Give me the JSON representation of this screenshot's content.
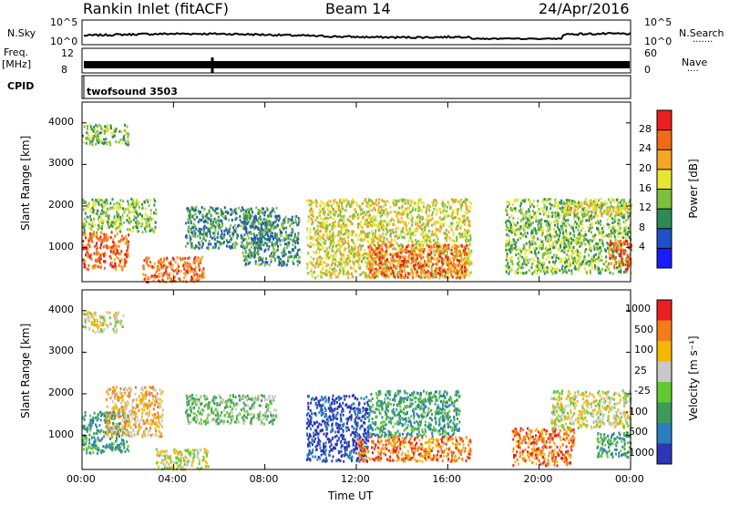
{
  "header": {
    "station": "Rankin Inlet (fitACF)",
    "beam": "Beam 14",
    "date": "24/Apr/2016"
  },
  "side_labels": {
    "nsky": "N.Sky",
    "nsearch": "N.Search",
    "freq": "Freq.",
    "freq_unit": "[MHz]",
    "nave": "Nave",
    "cpid": "CPID",
    "dots_search": "·······",
    "dots_nave": "····"
  },
  "cpid_value": "twofsound 3503",
  "noise_axis": {
    "left_ticks": [
      "10^5",
      "10^0"
    ],
    "right_ticks": [
      "10^5",
      "10^0"
    ]
  },
  "freq_axis": {
    "left_ticks": [
      "12",
      "8"
    ],
    "right_ticks": [
      "60",
      "0"
    ]
  },
  "chart_data": [
    {
      "type": "heatmap",
      "title": "",
      "xlabel": "Time UT",
      "ylabel": "Slant Range [km]",
      "x_ticks": [
        "00:00",
        "04:00",
        "08:00",
        "12:00",
        "16:00",
        "20:00",
        "00:00"
      ],
      "xlim": [
        0,
        24
      ],
      "y_ticks": [
        1000,
        2000,
        3000,
        4000
      ],
      "ylim": [
        180,
        4500
      ],
      "colorbar": {
        "label": "Power [dB]",
        "ticks": [
          "4",
          "8",
          "12",
          "16",
          "20",
          "24",
          "28"
        ],
        "colors": [
          "#1a1aff",
          "#2050c8",
          "#2e8b57",
          "#7fbf3f",
          "#e6e632",
          "#f5a623",
          "#f06a1a",
          "#e82020"
        ]
      },
      "regions": [
        {
          "t0": 0.0,
          "t1": 2.0,
          "r0": 500,
          "r1": 1400,
          "level": 6
        },
        {
          "t0": 0.0,
          "t1": 3.2,
          "r0": 1400,
          "r1": 2200,
          "level": 3
        },
        {
          "t0": 0.0,
          "t1": 2.0,
          "r0": 3500,
          "r1": 4000,
          "level": 3
        },
        {
          "t0": 2.6,
          "t1": 5.3,
          "r0": 200,
          "r1": 800,
          "level": 6
        },
        {
          "t0": 4.5,
          "t1": 8.5,
          "r0": 1000,
          "r1": 2000,
          "level": 2
        },
        {
          "t0": 7.0,
          "t1": 9.5,
          "r0": 600,
          "r1": 1800,
          "level": 2
        },
        {
          "t0": 9.8,
          "t1": 17.0,
          "r0": 300,
          "r1": 2200,
          "level": 4
        },
        {
          "t0": 12.5,
          "t1": 16.8,
          "r0": 300,
          "r1": 1100,
          "level": 6
        },
        {
          "t0": 18.5,
          "t1": 24.0,
          "r0": 400,
          "r1": 2200,
          "level": 3
        },
        {
          "t0": 21.0,
          "t1": 24.0,
          "r0": 1800,
          "r1": 2100,
          "level": 4
        },
        {
          "t0": 23.0,
          "t1": 24.0,
          "r0": 500,
          "r1": 1200,
          "level": 6
        }
      ]
    },
    {
      "type": "heatmap",
      "title": "",
      "xlabel": "Time UT",
      "ylabel": "Slant Range [km]",
      "x_ticks": [
        "00:00",
        "04:00",
        "08:00",
        "12:00",
        "16:00",
        "20:00",
        "00:00"
      ],
      "xlim": [
        0,
        24
      ],
      "y_ticks": [
        1000,
        2000,
        3000,
        4000
      ],
      "ylim": [
        180,
        4500
      ],
      "colorbar": {
        "label": "Velocity [m s⁻¹]",
        "ticks": [
          "1000",
          "500",
          "100",
          "25",
          "-25",
          "-100",
          "-500",
          "-1000"
        ],
        "colors": [
          "#2d36b4",
          "#2a7fbf",
          "#3c9b5a",
          "#63c832",
          "#c8c8c8",
          "#f5b800",
          "#f07c1a",
          "#e82020"
        ]
      },
      "regions": [
        {
          "t0": 0.0,
          "t1": 2.0,
          "r0": 600,
          "r1": 1600,
          "level": 2
        },
        {
          "t0": 0.0,
          "t1": 1.8,
          "r0": 3500,
          "r1": 4000,
          "level": 4
        },
        {
          "t0": 1.0,
          "t1": 3.5,
          "r0": 1000,
          "r1": 2200,
          "level": 5
        },
        {
          "t0": 3.2,
          "t1": 5.5,
          "r0": 200,
          "r1": 700,
          "level": 4
        },
        {
          "t0": 4.5,
          "t1": 8.5,
          "r0": 1300,
          "r1": 2000,
          "level": 3
        },
        {
          "t0": 9.8,
          "t1": 12.5,
          "r0": 400,
          "r1": 2000,
          "level": 0
        },
        {
          "t0": 12.0,
          "t1": 17.0,
          "r0": 400,
          "r1": 1000,
          "level": 6
        },
        {
          "t0": 12.5,
          "t1": 16.5,
          "r0": 1000,
          "r1": 2100,
          "level": 2
        },
        {
          "t0": 18.8,
          "t1": 21.5,
          "r0": 300,
          "r1": 1200,
          "level": 6
        },
        {
          "t0": 20.5,
          "t1": 24.0,
          "r0": 1200,
          "r1": 2100,
          "level": 4
        },
        {
          "t0": 22.5,
          "t1": 24.0,
          "r0": 500,
          "r1": 1100,
          "level": 2
        }
      ]
    }
  ]
}
